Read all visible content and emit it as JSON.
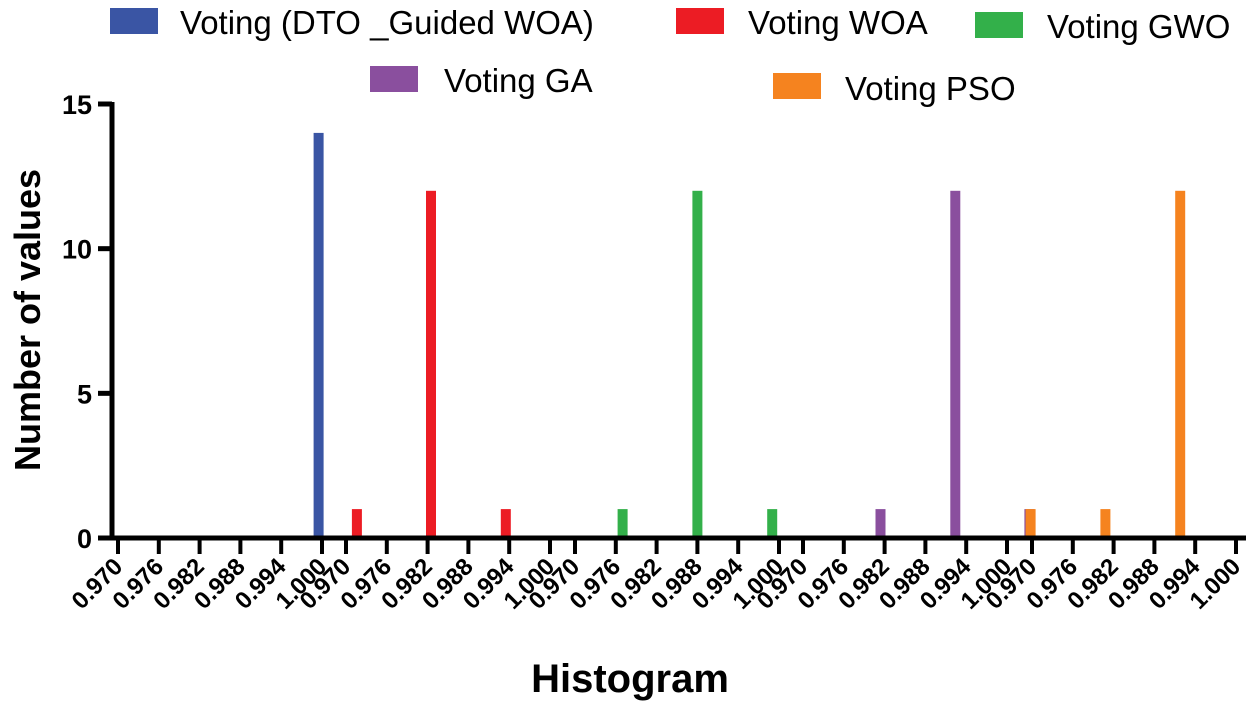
{
  "chart_data": {
    "type": "bar",
    "title": "",
    "xlabel": "Histogram",
    "ylabel": "Number of values",
    "ylim": [
      0,
      15
    ],
    "yticks": [
      0,
      5,
      10,
      15
    ],
    "bin_labels": [
      "0.970",
      "0.976",
      "0.982",
      "0.988",
      "0.994",
      "1.000"
    ],
    "series": [
      {
        "name": "Voting (DTO _Guided WOA)",
        "color": "#3a55a4",
        "label": "0.970 0.976 0.982 0.988 0.994 1.000",
        "bars": [
          {
            "x": 0.9995,
            "value": 14
          }
        ]
      },
      {
        "name": "Voting WOA",
        "color": "#ec1c24",
        "label": "0.970 0.976 0.982 0.988 0.994 1.000",
        "bars": [
          {
            "x": 0.9716,
            "value": 1
          },
          {
            "x": 0.9825,
            "value": 12
          },
          {
            "x": 0.9935,
            "value": 1
          }
        ]
      },
      {
        "name": "Voting GWO",
        "color": "#33b04a",
        "label": "0.970 0.976 0.982 0.988 0.994 1.000",
        "bars": [
          {
            "x": 0.977,
            "value": 1
          },
          {
            "x": 0.988,
            "value": 12
          },
          {
            "x": 0.999,
            "value": 1
          }
        ]
      },
      {
        "name": "Voting GA",
        "color": "#8a4f9e",
        "label": "0.970 0.976 0.982 0.988 0.994 1.000",
        "bars": [
          {
            "x": 0.9814,
            "value": 1
          },
          {
            "x": 0.9924,
            "value": 12
          },
          {
            "x": 1.0033,
            "value": 1
          }
        ]
      },
      {
        "name": "Voting PSO",
        "color": "#f5831f",
        "label": "0.970 0.976 0.982 0.988 0.994 1.000",
        "bars": [
          {
            "x": 0.9698,
            "value": 1
          },
          {
            "x": 0.9808,
            "value": 1
          },
          {
            "x": 0.9918,
            "value": 12
          }
        ]
      }
    ]
  }
}
